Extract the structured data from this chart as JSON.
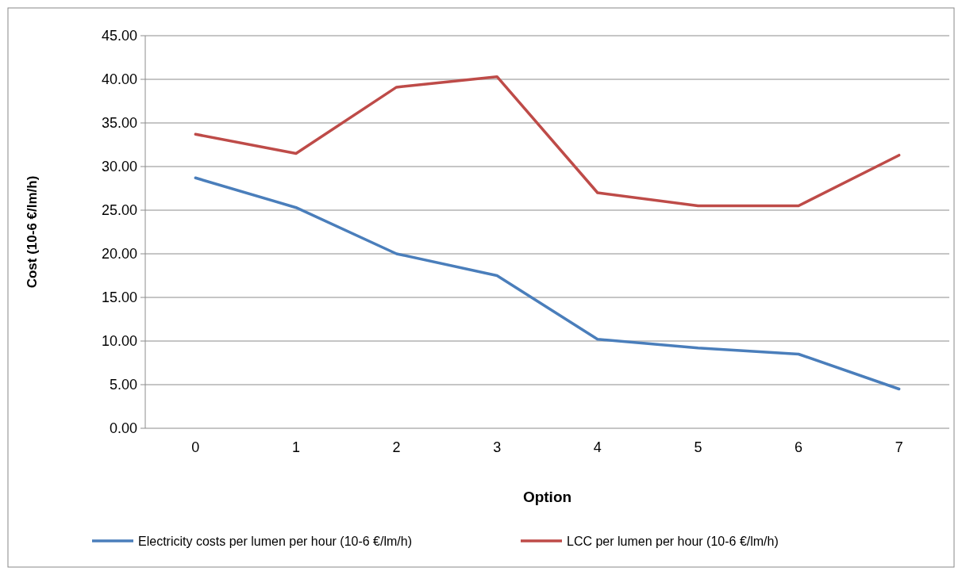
{
  "chart_data": {
    "type": "line",
    "xlabel": "Option",
    "ylabel": "Cost (10-6 €/lm/h)",
    "categories": [
      "0",
      "1",
      "2",
      "3",
      "4",
      "5",
      "6",
      "7"
    ],
    "series": [
      {
        "name": "Electricity costs per lumen per hour (10-6 €/lm/h)",
        "color": "#4a7ebb",
        "values": [
          28.7,
          25.3,
          20.0,
          17.5,
          10.2,
          9.2,
          8.5,
          4.5
        ]
      },
      {
        "name": "LCC per lumen per hour (10-6 €/lm/h)",
        "color": "#be4b48",
        "values": [
          33.7,
          31.5,
          39.1,
          40.3,
          27.0,
          25.5,
          25.5,
          31.3
        ]
      }
    ],
    "ylim": [
      0,
      45
    ],
    "yticks": [
      {
        "value": 0,
        "label": "0.00"
      },
      {
        "value": 5,
        "label": "5.00"
      },
      {
        "value": 10,
        "label": "10.00"
      },
      {
        "value": 15,
        "label": "15.00"
      },
      {
        "value": 20,
        "label": "20.00"
      },
      {
        "value": 25,
        "label": "25.00"
      },
      {
        "value": 30,
        "label": "30.00"
      },
      {
        "value": 35,
        "label": "35.00"
      },
      {
        "value": 40,
        "label": "40.00"
      },
      {
        "value": 45,
        "label": "45.00"
      }
    ],
    "grid": "y",
    "legend": "bottom",
    "marker": "none",
    "line_style": "solid"
  }
}
